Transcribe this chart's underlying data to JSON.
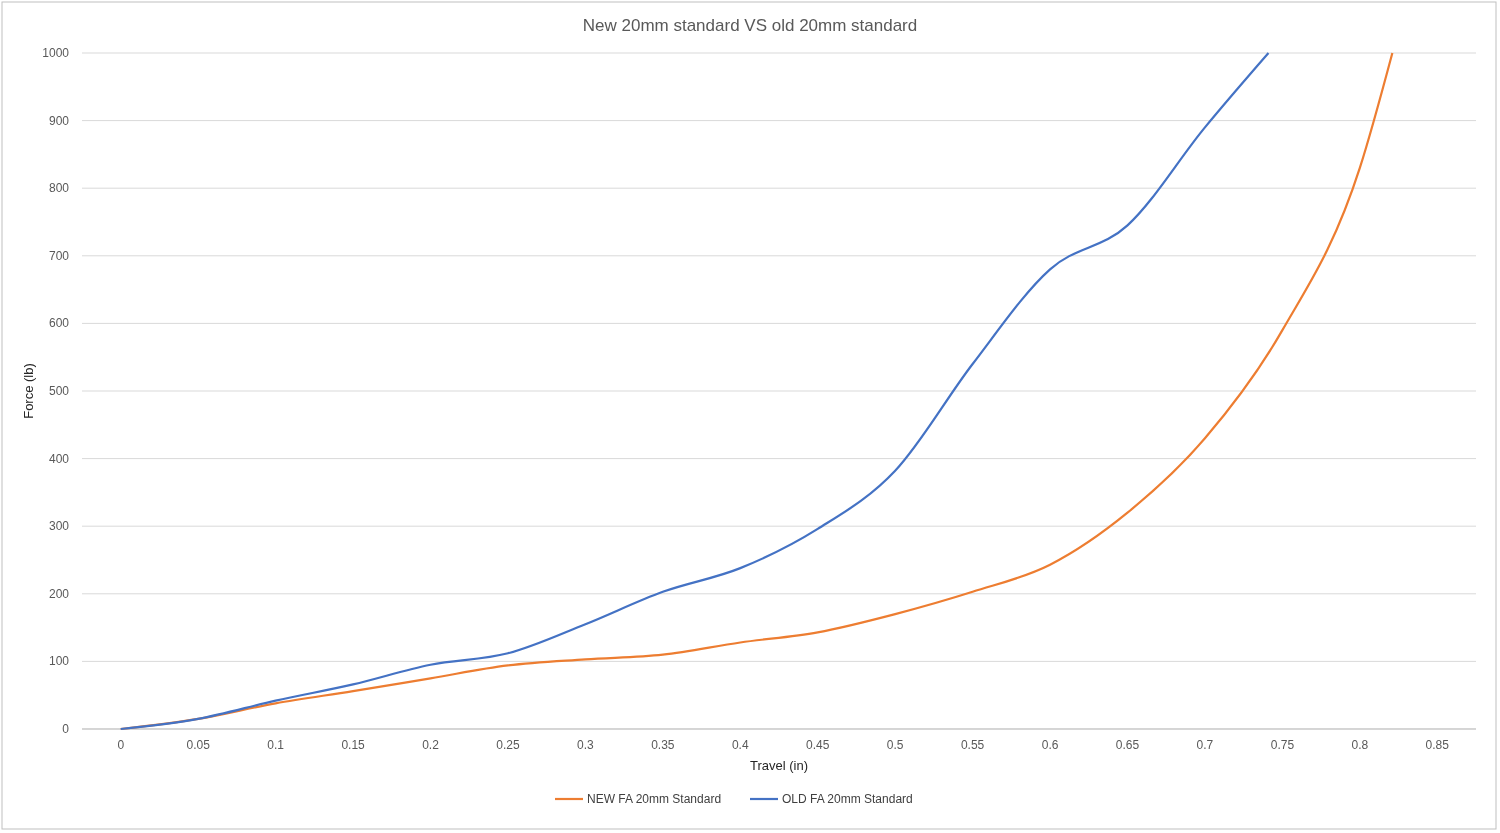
{
  "chart_data": {
    "type": "line",
    "title": "New 20mm standard VS old 20mm standard",
    "xlabel": "Travel (in)",
    "ylabel": "Force (lb)",
    "xlim": [
      -0.025,
      0.875
    ],
    "xticks": [
      0,
      0.05,
      0.1,
      0.15,
      0.2,
      0.25,
      0.3,
      0.35,
      0.4,
      0.45,
      0.5,
      0.55,
      0.6,
      0.65,
      0.7,
      0.75,
      0.8,
      0.85
    ],
    "ylim": [
      0,
      1000
    ],
    "yticks": [
      0,
      100,
      200,
      300,
      400,
      500,
      600,
      700,
      800,
      900,
      1000
    ],
    "grid": "y",
    "legend": "bottom",
    "series": [
      {
        "name": "NEW FA 20mm Standard",
        "color": "#ed7d31",
        "x": [
          0,
          0.05,
          0.1,
          0.15,
          0.2,
          0.25,
          0.3,
          0.35,
          0.4,
          0.45,
          0.5,
          0.55,
          0.6,
          0.65,
          0.7,
          0.75,
          0.8,
          0.821
        ],
        "values": [
          0,
          15,
          38,
          56,
          75,
          94,
          103,
          110,
          128,
          143,
          170,
          203,
          243,
          320,
          430,
          590,
          830,
          1000
        ]
      },
      {
        "name": "OLD FA 20mm Standard",
        "color": "#4472c4",
        "x": [
          0,
          0.05,
          0.1,
          0.15,
          0.2,
          0.25,
          0.3,
          0.35,
          0.4,
          0.45,
          0.5,
          0.55,
          0.6,
          0.65,
          0.7,
          0.741
        ],
        "values": [
          0,
          15,
          42,
          66,
          95,
          112,
          155,
          203,
          238,
          296,
          382,
          540,
          680,
          745,
          890,
          1000
        ]
      }
    ]
  }
}
